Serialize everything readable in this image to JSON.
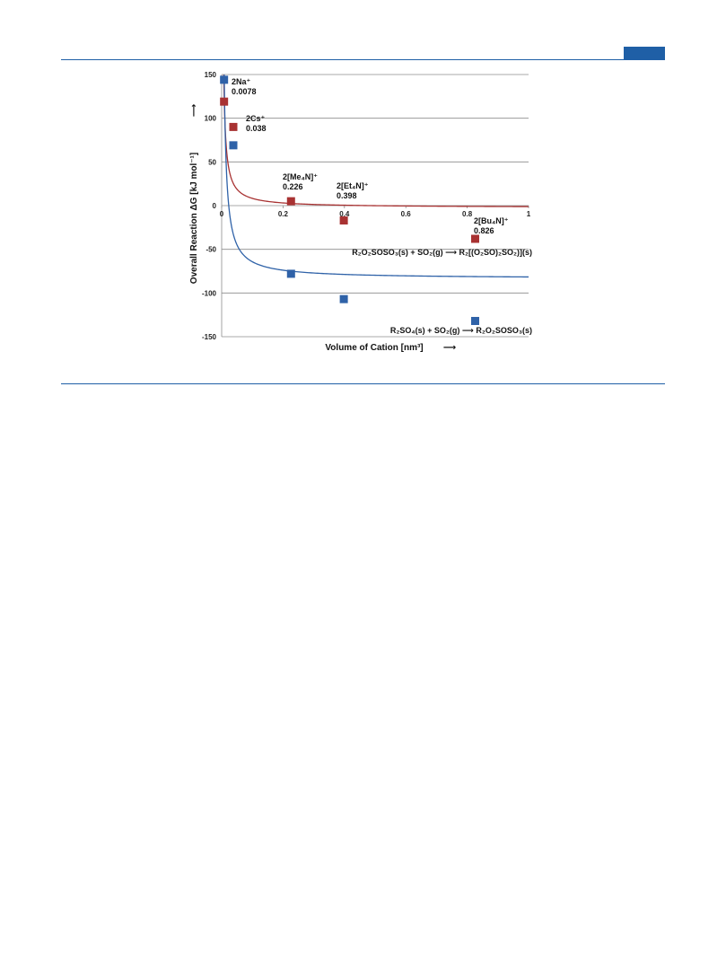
{
  "page": {
    "accent": "#1f5fa6"
  },
  "chart_data": {
    "type": "scatter",
    "xlabel": "Volume of Cation [nm³]",
    "xlabel_arrow": "⟶",
    "ylabel": "Overall Reaction ΔG [kJ mol⁻¹]",
    "ylabel_arrow": "⟶",
    "xlim": [
      0,
      1
    ],
    "ylim": [
      -150,
      150
    ],
    "xticks": [
      "0",
      "0.2",
      "0.4",
      "0.6",
      "0.8",
      "1"
    ],
    "yticks": [
      "150",
      "100",
      "50",
      "0",
      "-50",
      "-100",
      "-150"
    ],
    "grid": true,
    "series": [
      {
        "name": "R₂O₂SOSO₃(s) + SO₂(g) ⟶ R₂[(O₂SO)₂SO₂)](s)",
        "color": "#a83232",
        "x": [
          0.0078,
          0.038,
          0.226,
          0.398,
          0.826
        ],
        "y": [
          119,
          90,
          5,
          -17,
          -38
        ],
        "fit": "inverse"
      },
      {
        "name": "R₂SO₄(s) + SO₂(g) ⟶ R₂O₂SOSO₃(s)",
        "color": "#2f62a8",
        "x": [
          0.0078,
          0.038,
          0.226,
          0.398,
          0.826
        ],
        "y": [
          144,
          69,
          -78,
          -107,
          -132
        ],
        "fit": "inverse"
      }
    ],
    "annotations": [
      {
        "line1": "2Na⁺",
        "line2": "0.0078"
      },
      {
        "line1": "2Cs⁺",
        "line2": "0.038"
      },
      {
        "line1": "2[Me₄N]⁺",
        "line2": "0.226"
      },
      {
        "line1": "2[Et₄N]⁺",
        "line2": "0.398"
      },
      {
        "line1": "2[Bu₄N]⁺",
        "line2": "0.826"
      }
    ]
  }
}
